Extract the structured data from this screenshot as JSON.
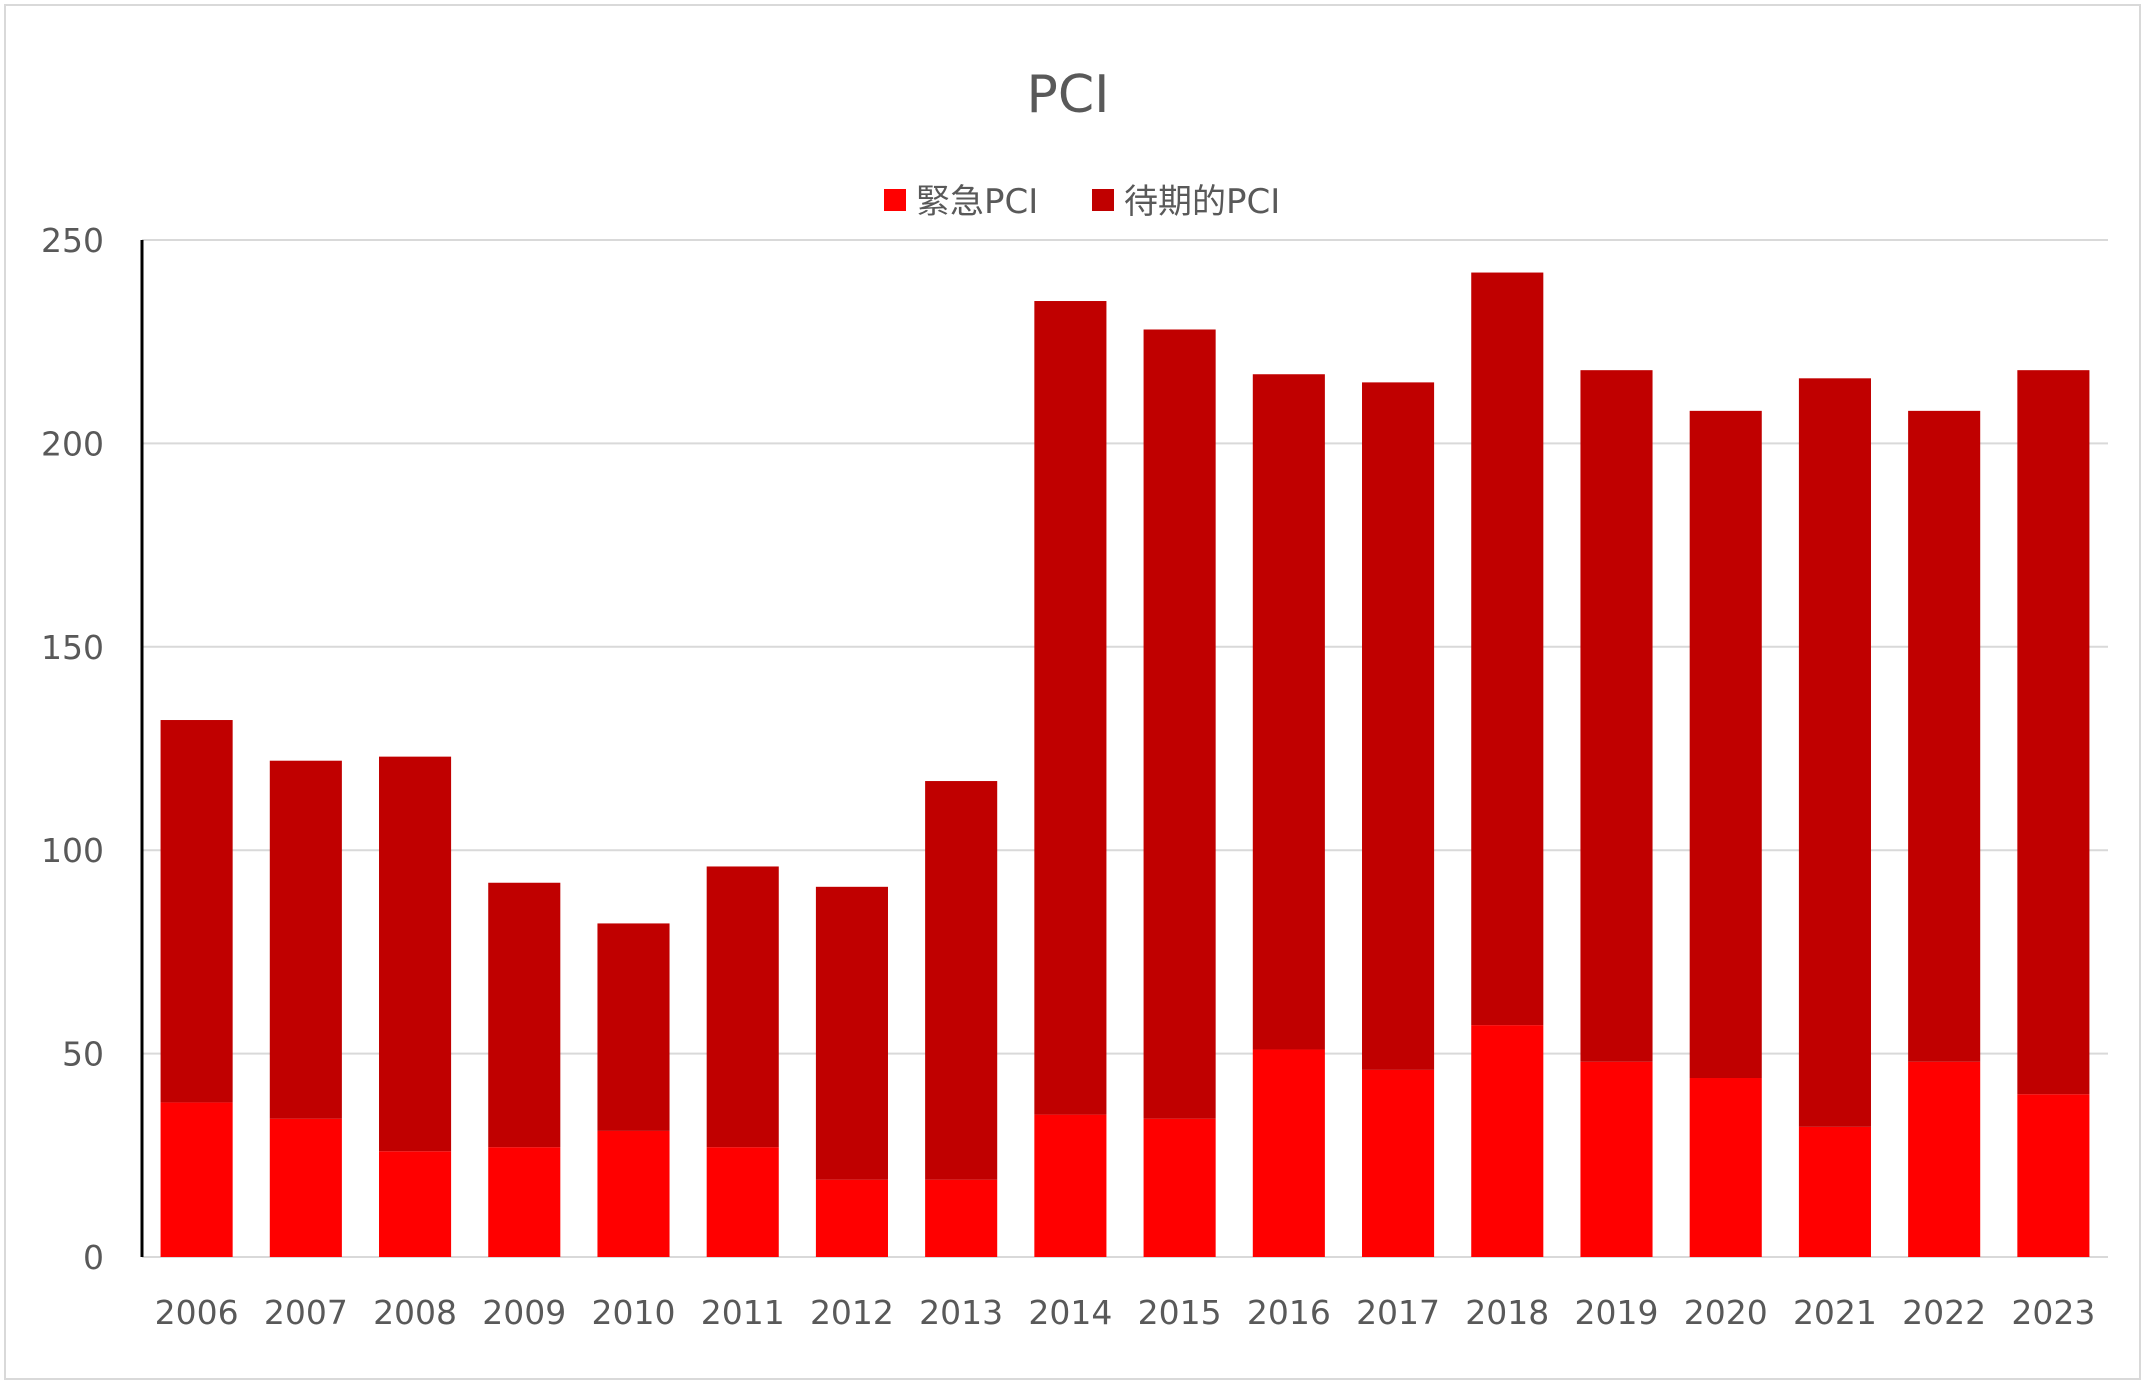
{
  "chart_data": {
    "type": "bar",
    "stacked": true,
    "title": "PCI",
    "xlabel": "",
    "ylabel": "",
    "ylim": [
      0,
      250
    ],
    "yticks": [
      0,
      50,
      100,
      150,
      200,
      250
    ],
    "grid": "horizontal",
    "legend_position": "top",
    "categories": [
      "2006",
      "2007",
      "2008",
      "2009",
      "2010",
      "2011",
      "2012",
      "2013",
      "2014",
      "2015",
      "2016",
      "2017",
      "2018",
      "2019",
      "2020",
      "2021",
      "2022",
      "2023"
    ],
    "series": [
      {
        "name": "緊急PCI",
        "color": "#ff0000",
        "values": [
          38,
          34,
          26,
          27,
          31,
          27,
          19,
          19,
          35,
          34,
          51,
          46,
          57,
          48,
          44,
          32,
          48,
          40
        ]
      },
      {
        "name": "待期的PCI",
        "color": "#c00000",
        "values": [
          94,
          88,
          97,
          65,
          51,
          69,
          72,
          98,
          200,
          194,
          166,
          169,
          185,
          170,
          164,
          184,
          160,
          178
        ]
      }
    ]
  }
}
